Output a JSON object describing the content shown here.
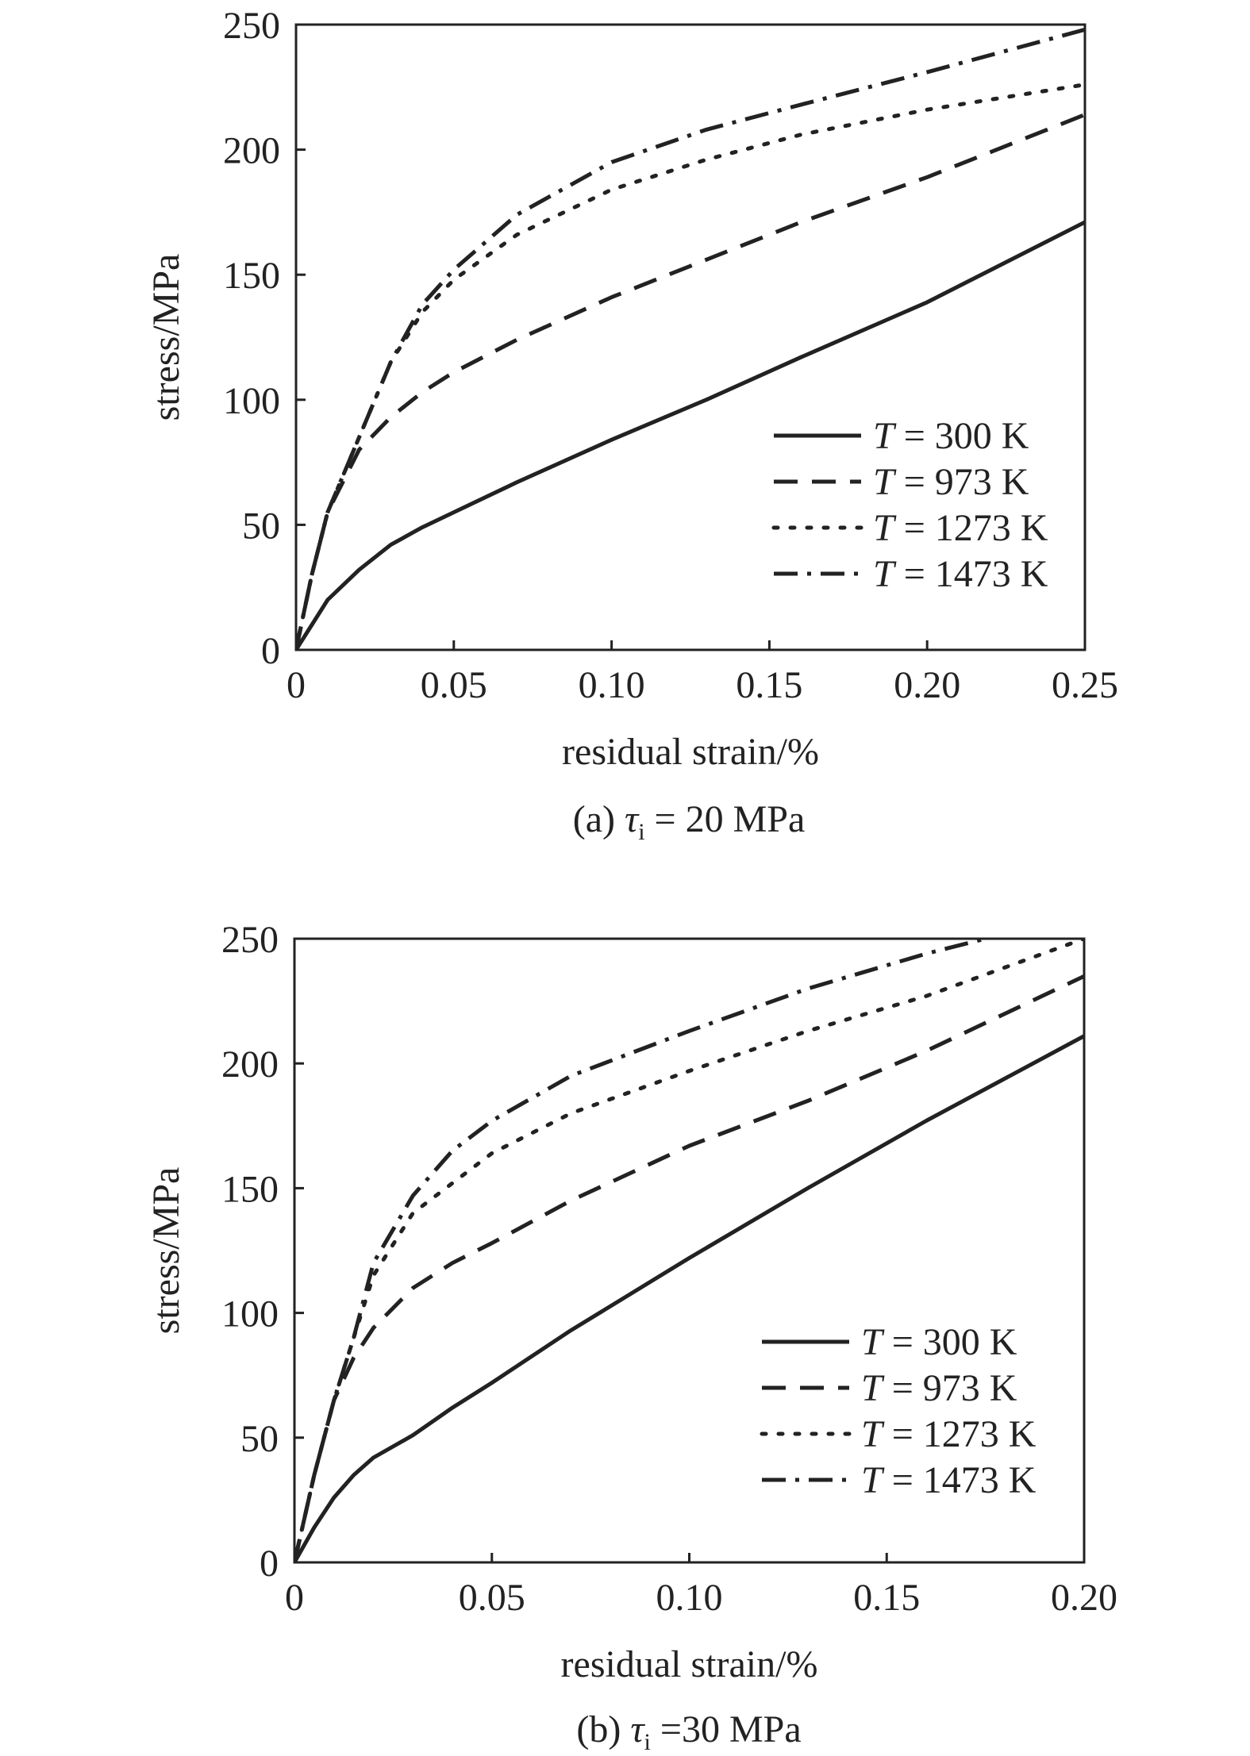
{
  "chart_data": [
    {
      "type": "line",
      "caption": {
        "prefix": "(a) ",
        "symbol": "τ",
        "sub": "i",
        "rest": " = 20 MPa"
      },
      "xlabel": "residual strain/%",
      "ylabel": "stress/MPa",
      "xlim": [
        0,
        0.25
      ],
      "ylim": [
        0,
        250
      ],
      "xticks": [
        0,
        0.05,
        0.1,
        0.15,
        0.2,
        0.25
      ],
      "xtick_labels": [
        "0",
        "0.05",
        "0.10",
        "0.15",
        "0.20",
        "0.25"
      ],
      "yticks": [
        0,
        50,
        100,
        150,
        200,
        250
      ],
      "ytick_labels": [
        "0",
        "50",
        "100",
        "150",
        "200",
        "250"
      ],
      "grid": false,
      "legend_position": "bottom-right",
      "series": [
        {
          "name": "T = 300 K",
          "var": "T",
          "label_rest": " = 300 K",
          "style": "solid",
          "x": [
            0,
            0.005,
            0.01,
            0.02,
            0.03,
            0.04,
            0.05,
            0.07,
            0.1,
            0.13,
            0.16,
            0.2,
            0.25
          ],
          "y": [
            0,
            10,
            20,
            32,
            42,
            49,
            55,
            67,
            84,
            100,
            117,
            139,
            171
          ]
        },
        {
          "name": "T = 973 K",
          "var": "T",
          "label_rest": " = 973 K",
          "style": "dashed",
          "x": [
            0,
            0.005,
            0.01,
            0.02,
            0.03,
            0.04,
            0.05,
            0.07,
            0.1,
            0.13,
            0.16,
            0.2,
            0.25
          ],
          "y": [
            0,
            30,
            55,
            80,
            93,
            103,
            111,
            124,
            141,
            156,
            171,
            189,
            214
          ]
        },
        {
          "name": "T = 1273 K",
          "var": "T",
          "label_rest": " = 1273 K",
          "style": "dotted",
          "x": [
            0,
            0.005,
            0.01,
            0.02,
            0.03,
            0.04,
            0.05,
            0.07,
            0.1,
            0.13,
            0.16,
            0.2,
            0.25
          ],
          "y": [
            0,
            30,
            55,
            85,
            115,
            135,
            148,
            166,
            184,
            196,
            206,
            216,
            226
          ]
        },
        {
          "name": "T = 1473 K",
          "var": "T",
          "label_rest": " = 1473 K",
          "style": "dashdot",
          "x": [
            0,
            0.005,
            0.01,
            0.02,
            0.03,
            0.04,
            0.05,
            0.07,
            0.1,
            0.13,
            0.16,
            0.2,
            0.25
          ],
          "y": [
            0,
            30,
            55,
            85,
            115,
            138,
            152,
            174,
            195,
            208,
            218,
            231,
            248
          ]
        }
      ]
    },
    {
      "type": "line",
      "caption": {
        "prefix": "(b) ",
        "symbol": "τ",
        "sub": "i",
        "rest": " =30 MPa"
      },
      "xlabel": "residual strain/%",
      "ylabel": "stress/MPa",
      "xlim": [
        0,
        0.2
      ],
      "ylim": [
        0,
        250
      ],
      "xticks": [
        0,
        0.05,
        0.1,
        0.15,
        0.2
      ],
      "xtick_labels": [
        "0",
        "0.05",
        "0.10",
        "0.15",
        "0.20"
      ],
      "yticks": [
        0,
        50,
        100,
        150,
        200,
        250
      ],
      "ytick_labels": [
        "0",
        "50",
        "100",
        "150",
        "200",
        "250"
      ],
      "grid": false,
      "legend_position": "bottom-right",
      "series": [
        {
          "name": "T = 300 K",
          "var": "T",
          "label_rest": " = 300 K",
          "style": "solid",
          "x": [
            0,
            0.005,
            0.01,
            0.015,
            0.02,
            0.03,
            0.04,
            0.05,
            0.07,
            0.1,
            0.13,
            0.16,
            0.2
          ],
          "y": [
            0,
            14,
            26,
            35,
            42,
            51,
            62,
            72,
            93,
            122,
            150,
            177,
            211
          ]
        },
        {
          "name": "T = 973 K",
          "var": "T",
          "label_rest": " = 973 K",
          "style": "dashed",
          "x": [
            0,
            0.005,
            0.01,
            0.015,
            0.02,
            0.03,
            0.04,
            0.05,
            0.07,
            0.1,
            0.13,
            0.16,
            0.2
          ],
          "y": [
            0,
            35,
            65,
            82,
            94,
            110,
            120,
            128,
            145,
            167,
            185,
            205,
            235
          ]
        },
        {
          "name": "T = 1273 K",
          "var": "T",
          "label_rest": " = 1273 K",
          "style": "dotted",
          "x": [
            0,
            0.005,
            0.01,
            0.015,
            0.02,
            0.03,
            0.04,
            0.05,
            0.07,
            0.1,
            0.13,
            0.16,
            0.2
          ],
          "y": [
            0,
            35,
            65,
            90,
            115,
            140,
            152,
            164,
            180,
            197,
            213,
            227,
            250
          ]
        },
        {
          "name": "T = 1473 K",
          "var": "T",
          "label_rest": " = 1473 K",
          "style": "dashdot",
          "x": [
            0,
            0.005,
            0.01,
            0.015,
            0.02,
            0.03,
            0.04,
            0.05,
            0.07,
            0.1,
            0.13,
            0.16,
            0.175
          ],
          "y": [
            0,
            35,
            65,
            90,
            120,
            147,
            165,
            177,
            195,
            213,
            230,
            244,
            250
          ]
        }
      ]
    }
  ]
}
